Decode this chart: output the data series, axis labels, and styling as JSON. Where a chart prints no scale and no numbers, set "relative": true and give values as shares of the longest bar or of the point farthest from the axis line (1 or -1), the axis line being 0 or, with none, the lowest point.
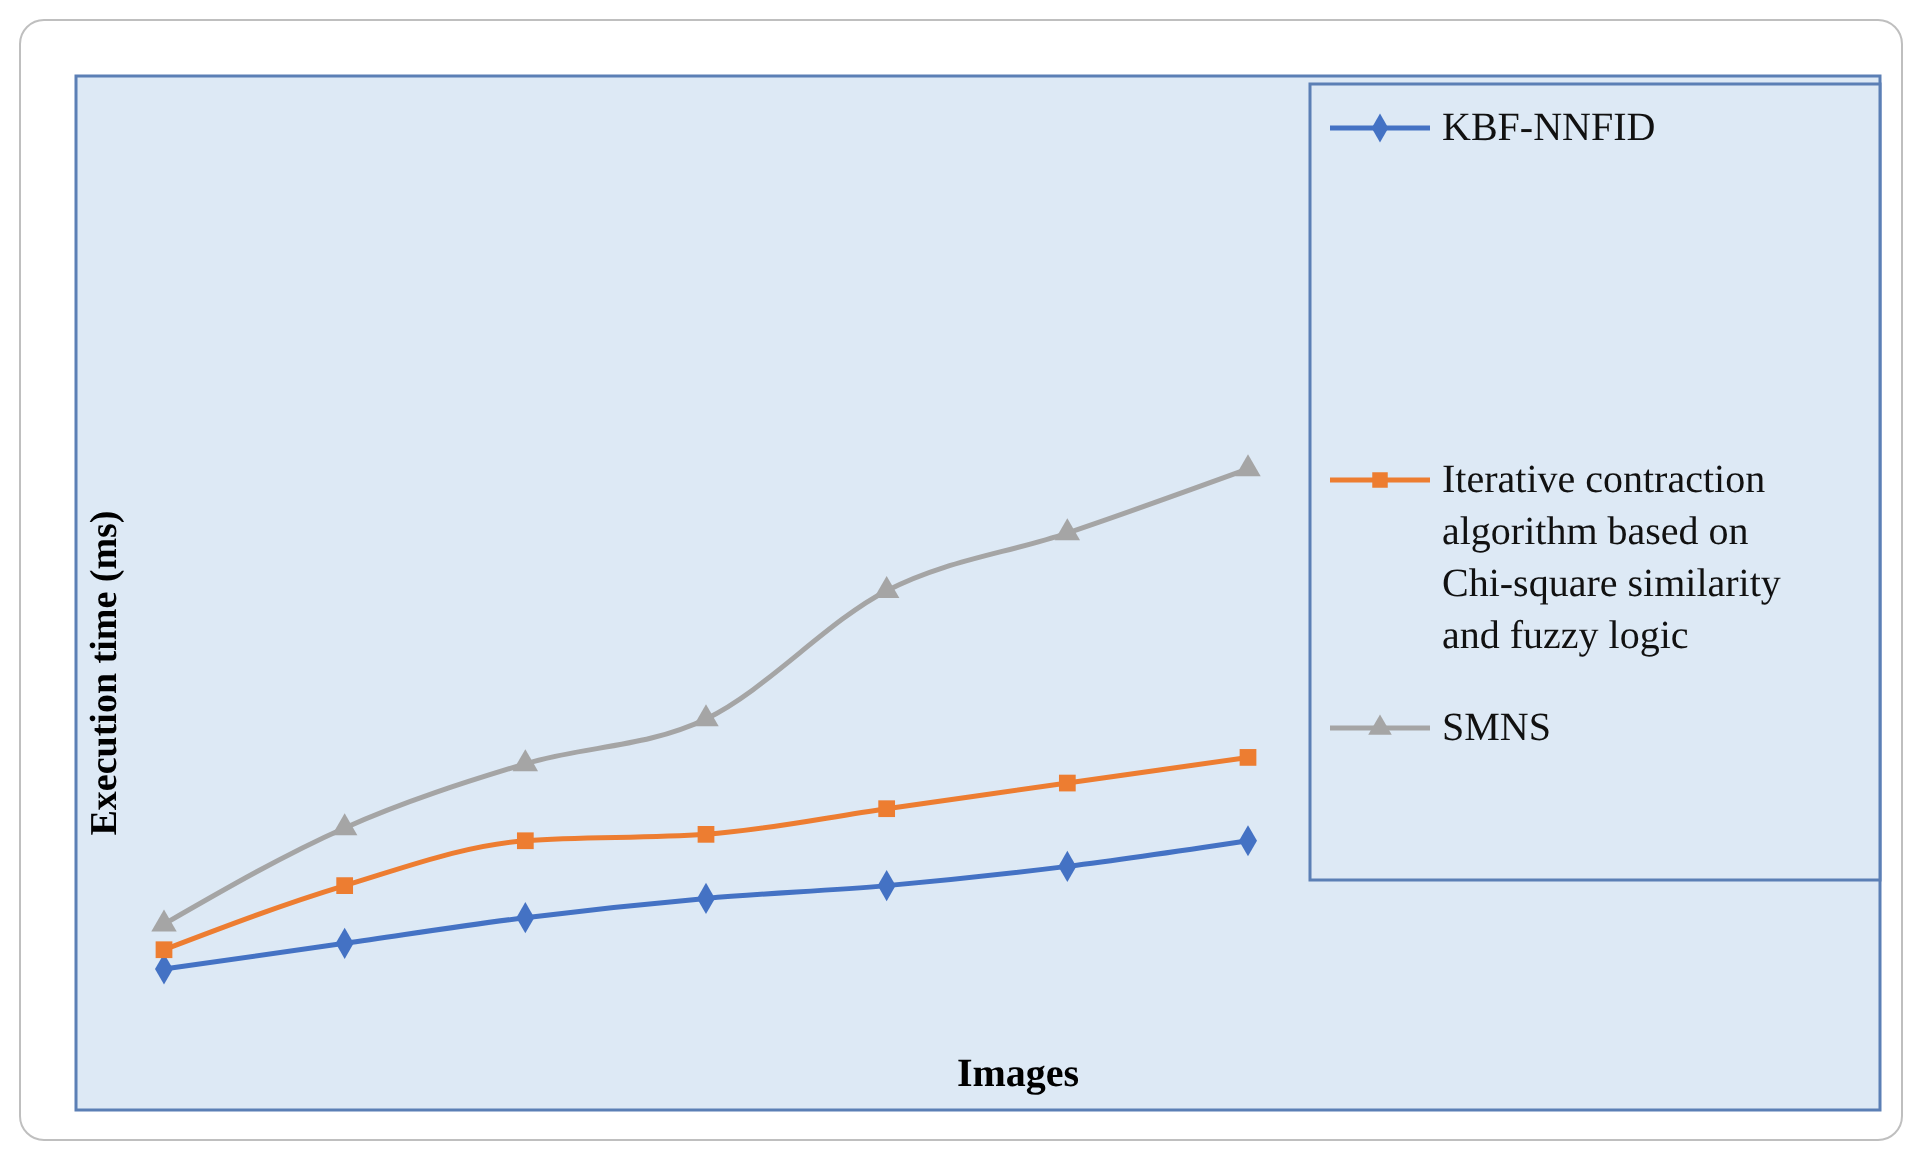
{
  "chart_data": {
    "type": "line",
    "relative": true,
    "xlabel": "Images",
    "ylabel": "Execution time (ms)",
    "categories": [
      null,
      null,
      null,
      null,
      null,
      null,
      null,
      null,
      null,
      null
    ],
    "legend": "right",
    "series": [
      {
        "name": "KBF-NNFID",
        "color": "#4472c4",
        "marker": "diamond",
        "values": [
          0.22,
          0.26,
          0.3,
          0.33,
          0.35,
          0.38,
          0.42,
          null,
          null,
          null
        ]
      },
      {
        "name": "Iterative contraction algorithm based on Chi-square similarity and fuzzy logic",
        "color": "#ed7d31",
        "marker": "square",
        "values": [
          0.25,
          0.35,
          0.42,
          0.43,
          0.47,
          0.51,
          0.55,
          null,
          null,
          null
        ]
      },
      {
        "name": "SMNS",
        "color": "#a5a5a5",
        "marker": "triangle",
        "values": [
          0.29,
          0.44,
          0.54,
          0.61,
          0.81,
          0.9,
          1,
          null,
          null,
          null
        ]
      }
    ]
  }
}
